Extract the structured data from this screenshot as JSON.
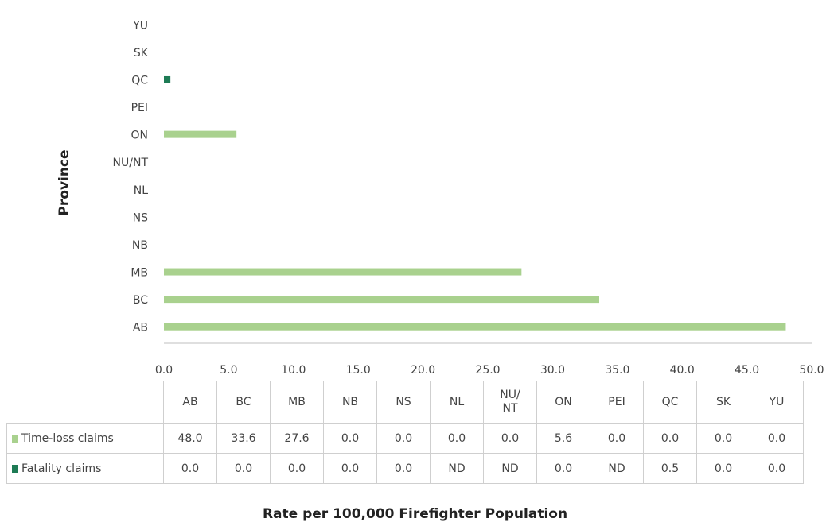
{
  "chart_data": {
    "type": "bar",
    "orientation": "horizontal",
    "categories": [
      "AB",
      "BC",
      "MB",
      "NB",
      "NS",
      "NL",
      "NU/NT",
      "ON",
      "PEI",
      "QC",
      "SK",
      "YU"
    ],
    "series": [
      {
        "name": "Time-loss claims",
        "color": "#a9d18e",
        "values": [
          48.0,
          33.6,
          27.6,
          0.0,
          0.0,
          0.0,
          0.0,
          5.6,
          0.0,
          0.0,
          0.0,
          0.0
        ],
        "labels": [
          "48.0",
          "33.6",
          "27.6",
          "0.0",
          "0.0",
          "0.0",
          "0.0",
          "5.6",
          "0.0",
          "0.0",
          "0.0",
          "0.0"
        ]
      },
      {
        "name": "Fatality claims",
        "color": "#1e7b55",
        "values": [
          0.0,
          0.0,
          0.0,
          0.0,
          0.0,
          null,
          null,
          0.0,
          null,
          0.5,
          0.0,
          0.0
        ],
        "labels": [
          "0.0",
          "0.0",
          "0.0",
          "0.0",
          "0.0",
          "ND",
          "ND",
          "0.0",
          "ND",
          "0.5",
          "0.0",
          "0.0"
        ]
      }
    ],
    "xlabel": "Rate per 100,000 Firefighter Population",
    "ylabel": "Province",
    "xlim": [
      0,
      50
    ],
    "xticks": [
      "0.0",
      "5.0",
      "10.0",
      "15.0",
      "20.0",
      "25.0",
      "30.0",
      "35.0",
      "40.0",
      "45.0",
      "50.0"
    ],
    "grid": false,
    "legend": "data-table-below"
  },
  "table": {
    "header_rows": {
      "NU/NT": [
        "NU/",
        "NT"
      ]
    }
  }
}
